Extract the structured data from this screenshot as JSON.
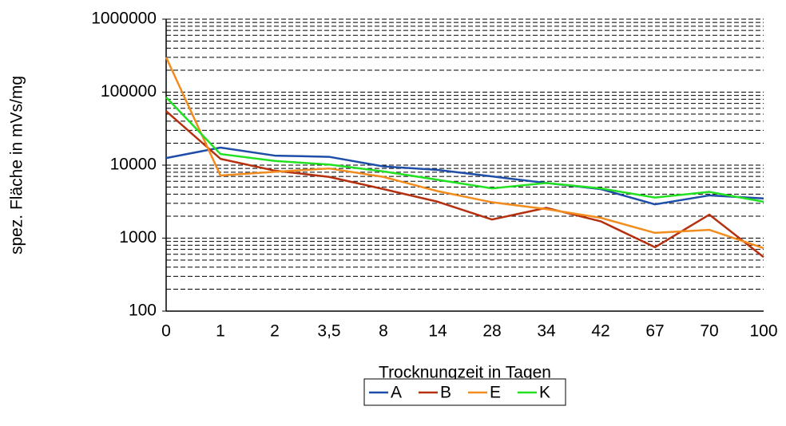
{
  "chart_data": {
    "type": "line",
    "x_label": "Trocknungzeit in Tagen",
    "y_label": "spez. Fläche in mVs/mg",
    "categories": [
      "0",
      "1",
      "2",
      "3,5",
      "8",
      "14",
      "28",
      "34",
      "42",
      "67",
      "70",
      "100"
    ],
    "series": [
      {
        "name": "A",
        "color": "#1f4ea8",
        "values": [
          12500,
          17400,
          13500,
          13000,
          9600,
          8600,
          7000,
          5700,
          4700,
          2900,
          3850,
          3500
        ]
      },
      {
        "name": "B",
        "color": "#b5300f",
        "values": [
          55000,
          12200,
          8400,
          6900,
          4700,
          3150,
          1800,
          2600,
          1700,
          750,
          2100,
          550
        ]
      },
      {
        "name": "E",
        "color": "#f28c1e",
        "values": [
          300000,
          7200,
          8100,
          9000,
          6900,
          4400,
          3100,
          2500,
          1900,
          1180,
          1300,
          730
        ]
      },
      {
        "name": "K",
        "color": "#22e022",
        "values": [
          85000,
          14200,
          11400,
          10200,
          8200,
          6300,
          4800,
          5700,
          4800,
          3600,
          4300,
          3150
        ]
      }
    ],
    "ylim": [
      100,
      1000000
    ],
    "yticks": [
      100,
      1000,
      10000,
      100000,
      1000000
    ],
    "log_y": true,
    "grid": true,
    "legend": "bottom"
  }
}
